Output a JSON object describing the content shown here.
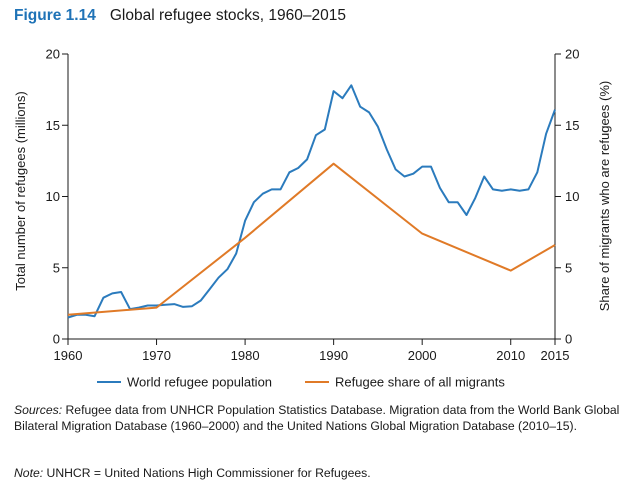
{
  "figure": {
    "number": "Figure 1.14",
    "title": "Global refugee stocks, 1960–2015"
  },
  "sources": {
    "label": "Sources:",
    "text": " Refugee data from UNHCR Population Statistics Database. Migration data from the World Bank Global Bilateral Migration Database (1960–2000) and the United Nations Global Migration Database (2010–15)."
  },
  "note": {
    "label": "Note:",
    "text": " UNHCR = United Nations High Commissioner for Refugees."
  },
  "colors": {
    "population": "#2b7bbd",
    "share": "#e07a27",
    "axis": "#1a1a1a"
  },
  "chart_data": {
    "type": "line",
    "xlabel": "",
    "ylabel": "Total number of refugees (millions)",
    "y2label": "Share of migrants who are refugees (%)",
    "xlim": [
      1960,
      2015
    ],
    "ylim": [
      0,
      20
    ],
    "y2lim": [
      0,
      20
    ],
    "x_ticks": [
      1960,
      1970,
      1980,
      1990,
      2000,
      2010,
      2015
    ],
    "y_ticks": [
      0,
      5,
      10,
      15,
      20
    ],
    "y2_ticks": [
      0,
      5,
      10,
      15,
      20
    ],
    "grid": false,
    "legend_position": "bottom",
    "series": [
      {
        "name": "World refugee population",
        "axis": "left",
        "x": [
          1960,
          1961,
          1962,
          1963,
          1964,
          1965,
          1966,
          1967,
          1968,
          1969,
          1970,
          1971,
          1972,
          1973,
          1974,
          1975,
          1976,
          1977,
          1978,
          1979,
          1980,
          1981,
          1982,
          1983,
          1984,
          1985,
          1986,
          1987,
          1988,
          1989,
          1990,
          1991,
          1992,
          1993,
          1994,
          1995,
          1996,
          1997,
          1998,
          1999,
          2000,
          2001,
          2002,
          2003,
          2004,
          2005,
          2006,
          2007,
          2008,
          2009,
          2010,
          2011,
          2012,
          2013,
          2014,
          2015
        ],
        "values": [
          1.5,
          1.7,
          1.7,
          1.6,
          2.9,
          3.2,
          3.3,
          2.1,
          2.2,
          2.35,
          2.35,
          2.4,
          2.45,
          2.25,
          2.3,
          2.7,
          3.5,
          4.3,
          4.9,
          6.0,
          8.3,
          9.6,
          10.2,
          10.5,
          10.5,
          11.7,
          12.0,
          12.6,
          14.3,
          14.7,
          17.4,
          16.9,
          17.8,
          16.3,
          15.9,
          14.9,
          13.3,
          11.9,
          11.4,
          11.6,
          12.1,
          12.1,
          10.6,
          9.6,
          9.6,
          8.7,
          9.9,
          11.4,
          10.5,
          10.4,
          10.5,
          10.4,
          10.5,
          11.7,
          14.4,
          16.1
        ]
      },
      {
        "name": "Refugee share of all migrants",
        "axis": "right",
        "x": [
          1960,
          1970,
          1980,
          1990,
          2000,
          2010,
          2015
        ],
        "values": [
          1.7,
          2.2,
          7.1,
          12.3,
          7.4,
          4.8,
          6.6
        ]
      }
    ]
  }
}
